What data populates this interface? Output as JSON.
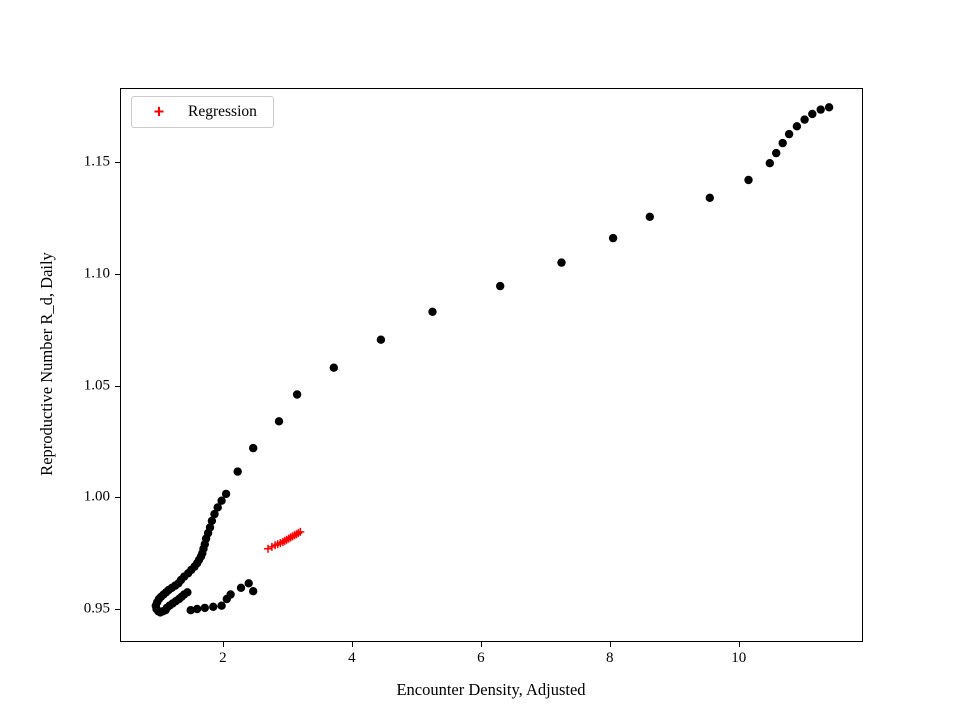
{
  "chart_data": {
    "type": "scatter",
    "title": "",
    "xlabel": "Encounter Density, Adjusted",
    "ylabel": "Reproductive Number R_d, Daily",
    "xlim": [
      0.42,
      11.91
    ],
    "ylim": [
      0.9357,
      1.1827
    ],
    "grid": false,
    "xticks": {
      "values": [
        2,
        4,
        6,
        8,
        10
      ],
      "labels": [
        "2",
        "4",
        "6",
        "8",
        "10"
      ]
    },
    "yticks": {
      "values": [
        0.95,
        1.0,
        1.05,
        1.1,
        1.15
      ],
      "labels": [
        "0.95",
        "1.00",
        "1.05",
        "1.10",
        "1.15"
      ]
    },
    "legend": {
      "position": "upper left",
      "entries": [
        {
          "label": "Regression",
          "marker": "+",
          "color": "#ff0000"
        }
      ]
    },
    "series": [
      {
        "name": "trajectory",
        "marker": "circle",
        "color": "#000000",
        "points": [
          [
            0.97,
            0.95
          ],
          [
            1.0,
            0.949
          ],
          [
            1.03,
            0.9485
          ],
          [
            1.07,
            0.949
          ],
          [
            1.11,
            0.9495
          ],
          [
            0.96,
            0.9515
          ],
          [
            0.98,
            0.953
          ],
          [
            1.01,
            0.9545
          ],
          [
            1.04,
            0.9555
          ],
          [
            1.08,
            0.9565
          ],
          [
            1.12,
            0.9575
          ],
          [
            1.16,
            0.9585
          ],
          [
            1.21,
            0.9595
          ],
          [
            1.26,
            0.9605
          ],
          [
            1.31,
            0.9615
          ],
          [
            1.13,
            0.9505
          ],
          [
            1.17,
            0.9515
          ],
          [
            1.22,
            0.9525
          ],
          [
            1.27,
            0.9535
          ],
          [
            1.32,
            0.9545
          ],
          [
            1.36,
            0.9555
          ],
          [
            1.4,
            0.9565
          ],
          [
            1.45,
            0.9575
          ],
          [
            1.35,
            0.963
          ],
          [
            1.4,
            0.9645
          ],
          [
            1.46,
            0.966
          ],
          [
            1.51,
            0.9675
          ],
          [
            1.56,
            0.969
          ],
          [
            1.6,
            0.9705
          ],
          [
            1.63,
            0.972
          ],
          [
            1.66,
            0.9735
          ],
          [
            1.68,
            0.975
          ],
          [
            1.7,
            0.977
          ],
          [
            1.72,
            0.979
          ],
          [
            1.74,
            0.9815
          ],
          [
            1.77,
            0.984
          ],
          [
            1.8,
            0.9865
          ],
          [
            1.83,
            0.9895
          ],
          [
            1.87,
            0.9925
          ],
          [
            1.92,
            0.9955
          ],
          [
            1.98,
            0.9985
          ],
          [
            2.05,
            1.0015
          ],
          [
            2.23,
            1.0115
          ],
          [
            2.47,
            1.022
          ],
          [
            2.87,
            1.034
          ],
          [
            3.15,
            1.046
          ],
          [
            3.72,
            1.058
          ],
          [
            4.45,
            1.0705
          ],
          [
            5.25,
            1.083
          ],
          [
            6.3,
            1.0945
          ],
          [
            7.25,
            1.105
          ],
          [
            8.05,
            1.116
          ],
          [
            8.62,
            1.1255
          ],
          [
            9.55,
            1.134
          ],
          [
            10.15,
            1.142
          ],
          [
            10.48,
            1.1495
          ],
          [
            10.58,
            1.154
          ],
          [
            10.68,
            1.1585
          ],
          [
            10.78,
            1.1625
          ],
          [
            10.9,
            1.166
          ],
          [
            11.02,
            1.169
          ],
          [
            11.14,
            1.1715
          ],
          [
            11.27,
            1.1735
          ],
          [
            11.4,
            1.1745
          ],
          [
            1.5,
            0.9495
          ],
          [
            1.6,
            0.95
          ],
          [
            1.72,
            0.9505
          ],
          [
            1.85,
            0.951
          ],
          [
            1.98,
            0.9515
          ],
          [
            2.06,
            0.9545
          ],
          [
            2.12,
            0.9565
          ],
          [
            2.28,
            0.9595
          ],
          [
            2.4,
            0.9615
          ],
          [
            2.47,
            0.958
          ]
        ]
      },
      {
        "name": "Regression",
        "marker": "plus",
        "color": "#ff0000",
        "points": [
          [
            2.7,
            0.977
          ],
          [
            2.76,
            0.9778
          ],
          [
            2.81,
            0.9785
          ],
          [
            2.85,
            0.979
          ],
          [
            2.89,
            0.9795
          ],
          [
            2.93,
            0.98
          ],
          [
            2.96,
            0.9805
          ],
          [
            2.99,
            0.981
          ],
          [
            3.02,
            0.9815
          ],
          [
            3.05,
            0.982
          ],
          [
            3.08,
            0.9825
          ],
          [
            3.11,
            0.983
          ],
          [
            3.14,
            0.9835
          ],
          [
            3.17,
            0.984
          ],
          [
            3.2,
            0.9845
          ]
        ]
      }
    ]
  }
}
